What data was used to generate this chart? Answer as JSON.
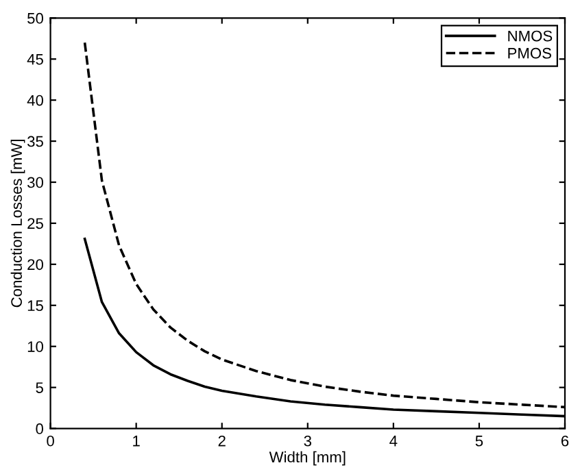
{
  "chart_data": {
    "type": "line",
    "xlabel": "Width [mm]",
    "ylabel": "Conduction Losses [mW]",
    "x": [
      0.4,
      0.6,
      0.8,
      1.0,
      1.2,
      1.4,
      1.6,
      1.8,
      2.0,
      2.4,
      2.8,
      3.2,
      3.6,
      4.0,
      4.5,
      5.0,
      5.5,
      6.0
    ],
    "series": [
      {
        "name": "NMOS",
        "color": "#000000",
        "line_style": "solid",
        "values": [
          23.1,
          15.4,
          11.6,
          9.3,
          7.7,
          6.6,
          5.8,
          5.1,
          4.6,
          3.9,
          3.3,
          2.9,
          2.6,
          2.3,
          2.1,
          1.9,
          1.7,
          1.5
        ]
      },
      {
        "name": "PMOS",
        "color": "#000000",
        "line_style": "dashed",
        "values": [
          47.0,
          30.2,
          22.3,
          17.6,
          14.5,
          12.3,
          10.7,
          9.4,
          8.4,
          7.0,
          5.9,
          5.1,
          4.5,
          4.0,
          3.6,
          3.2,
          2.9,
          2.6
        ]
      }
    ],
    "xlim": [
      0,
      6
    ],
    "xticks": [
      0,
      1,
      2,
      3,
      4,
      5,
      6
    ],
    "ylim": [
      0,
      50
    ],
    "yticks": [
      0,
      5,
      10,
      15,
      20,
      25,
      30,
      35,
      40,
      45,
      50
    ],
    "grid": false,
    "legend": "top right"
  }
}
